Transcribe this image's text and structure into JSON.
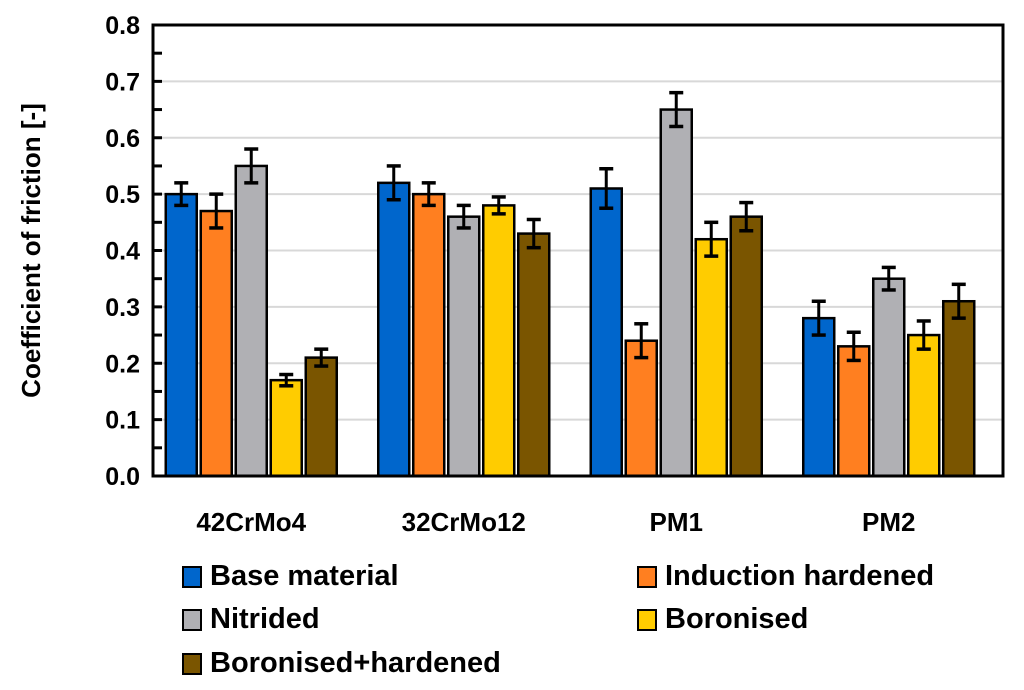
{
  "chart_data": {
    "type": "bar",
    "title": "",
    "xlabel": "",
    "ylabel": "Coefficient of friction [-]",
    "ylim": [
      0,
      0.8
    ],
    "yticks": [
      "0.0",
      "0.1",
      "0.2",
      "0.3",
      "0.4",
      "0.5",
      "0.6",
      "0.7",
      "0.8"
    ],
    "grid": true,
    "legend_position": "bottom",
    "categories": [
      "42CrMo4",
      "32CrMo12",
      "PM1",
      "PM2"
    ],
    "series": [
      {
        "name": "Base material",
        "color": "#0066CC",
        "values": [
          0.5,
          0.52,
          0.51,
          0.28
        ],
        "errors": [
          0.02,
          0.03,
          0.035,
          0.03
        ]
      },
      {
        "name": "Induction hardened",
        "color": "#FF7F20",
        "values": [
          0.47,
          0.5,
          0.24,
          0.23
        ],
        "errors": [
          0.03,
          0.02,
          0.03,
          0.025
        ]
      },
      {
        "name": "Nitrided",
        "color": "#B0B0B4",
        "values": [
          0.55,
          0.46,
          0.65,
          0.35
        ],
        "errors": [
          0.03,
          0.02,
          0.03,
          0.02
        ]
      },
      {
        "name": "Boronised",
        "color": "#FFCC00",
        "values": [
          0.17,
          0.48,
          0.42,
          0.25
        ],
        "errors": [
          0.01,
          0.015,
          0.03,
          0.025
        ]
      },
      {
        "name": "Boronised+hardened",
        "color": "#7A5500",
        "values": [
          0.21,
          0.43,
          0.46,
          0.31
        ],
        "errors": [
          0.015,
          0.025,
          0.025,
          0.03
        ]
      }
    ]
  }
}
